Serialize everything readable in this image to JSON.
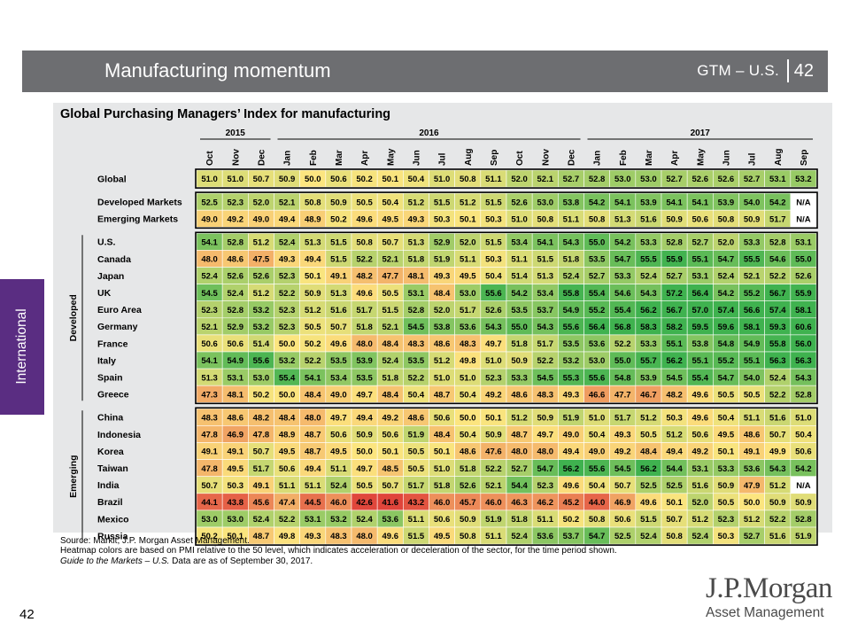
{
  "header": {
    "title": "Manufacturing momentum",
    "section": "GTM – U.S.",
    "page_number": "42",
    "banner_color": "#6d6e71",
    "chevron_color": "#a0522d"
  },
  "side_tab": {
    "label": "International",
    "color": "#5a2d82"
  },
  "chart_data": {
    "type": "heatmap",
    "title": "Global Purchasing Managers’ Index for manufacturing",
    "years": [
      {
        "label": "2015",
        "start": 0,
        "end": 2
      },
      {
        "label": "2016",
        "start": 3,
        "end": 14
      },
      {
        "label": "2017",
        "start": 15,
        "end": 23
      }
    ],
    "months": [
      "Oct",
      "Nov",
      "Dec",
      "Jan",
      "Feb",
      "Mar",
      "Apr",
      "May",
      "Jun",
      "Jul",
      "Aug",
      "Sep",
      "Oct",
      "Nov",
      "Dec",
      "Jan",
      "Feb",
      "Mar",
      "Apr",
      "May",
      "Jun",
      "Jul",
      "Aug",
      "Sep"
    ],
    "groups": [
      {
        "label": "",
        "rows": [
          {
            "name": "Global",
            "values": [
              "51.0",
              "51.0",
              "50.7",
              "50.9",
              "50.0",
              "50.6",
              "50.2",
              "50.1",
              "50.4",
              "51.0",
              "50.8",
              "51.1",
              "52.0",
              "52.1",
              "52.7",
              "52.8",
              "53.0",
              "53.0",
              "52.7",
              "52.6",
              "52.6",
              "52.7",
              "53.1",
              "53.2"
            ]
          }
        ]
      },
      {
        "label": "",
        "rows": [
          {
            "name": "Developed Markets",
            "values": [
              "52.5",
              "52.3",
              "52.0",
              "52.1",
              "50.8",
              "50.9",
              "50.5",
              "50.4",
              "51.2",
              "51.5",
              "51.2",
              "51.5",
              "52.6",
              "53.0",
              "53.8",
              "54.2",
              "54.1",
              "53.9",
              "54.1",
              "54.1",
              "53.9",
              "54.0",
              "54.2",
              "N/A"
            ]
          },
          {
            "name": "Emerging Markets",
            "values": [
              "49.0",
              "49.2",
              "49.0",
              "49.4",
              "48.9",
              "50.2",
              "49.6",
              "49.5",
              "49.3",
              "50.3",
              "50.1",
              "50.3",
              "51.0",
              "50.8",
              "51.1",
              "50.8",
              "51.3",
              "51.6",
              "50.9",
              "50.6",
              "50.8",
              "50.9",
              "51.7",
              "N/A"
            ]
          }
        ]
      },
      {
        "label": "Developed",
        "rows": [
          {
            "name": "U.S.",
            "values": [
              "54.1",
              "52.8",
              "51.2",
              "52.4",
              "51.3",
              "51.5",
              "50.8",
              "50.7",
              "51.3",
              "52.9",
              "52.0",
              "51.5",
              "53.4",
              "54.1",
              "54.3",
              "55.0",
              "54.2",
              "53.3",
              "52.8",
              "52.7",
              "52.0",
              "53.3",
              "52.8",
              "53.1"
            ]
          },
          {
            "name": "Canada",
            "values": [
              "48.0",
              "48.6",
              "47.5",
              "49.3",
              "49.4",
              "51.5",
              "52.2",
              "52.1",
              "51.8",
              "51.9",
              "51.1",
              "50.3",
              "51.1",
              "51.5",
              "51.8",
              "53.5",
              "54.7",
              "55.5",
              "55.9",
              "55.1",
              "54.7",
              "55.5",
              "54.6",
              "55.0"
            ]
          },
          {
            "name": "Japan",
            "values": [
              "52.4",
              "52.6",
              "52.6",
              "52.3",
              "50.1",
              "49.1",
              "48.2",
              "47.7",
              "48.1",
              "49.3",
              "49.5",
              "50.4",
              "51.4",
              "51.3",
              "52.4",
              "52.7",
              "53.3",
              "52.4",
              "52.7",
              "53.1",
              "52.4",
              "52.1",
              "52.2",
              "52.6"
            ]
          },
          {
            "name": "UK",
            "values": [
              "54.5",
              "52.4",
              "51.2",
              "52.2",
              "50.9",
              "51.3",
              "49.6",
              "50.5",
              "53.1",
              "48.4",
              "53.0",
              "55.6",
              "54.2",
              "53.4",
              "55.8",
              "55.4",
              "54.6",
              "54.3",
              "57.2",
              "56.4",
              "54.2",
              "55.2",
              "56.7",
              "55.9"
            ]
          },
          {
            "name": "Euro Area",
            "values": [
              "52.3",
              "52.8",
              "53.2",
              "52.3",
              "51.2",
              "51.6",
              "51.7",
              "51.5",
              "52.8",
              "52.0",
              "51.7",
              "52.6",
              "53.5",
              "53.7",
              "54.9",
              "55.2",
              "55.4",
              "56.2",
              "56.7",
              "57.0",
              "57.4",
              "56.6",
              "57.4",
              "58.1"
            ]
          },
          {
            "name": "Germany",
            "values": [
              "52.1",
              "52.9",
              "53.2",
              "52.3",
              "50.5",
              "50.7",
              "51.8",
              "52.1",
              "54.5",
              "53.8",
              "53.6",
              "54.3",
              "55.0",
              "54.3",
              "55.6",
              "56.4",
              "56.8",
              "58.3",
              "58.2",
              "59.5",
              "59.6",
              "58.1",
              "59.3",
              "60.6"
            ]
          },
          {
            "name": "France",
            "values": [
              "50.6",
              "50.6",
              "51.4",
              "50.0",
              "50.2",
              "49.6",
              "48.0",
              "48.4",
              "48.3",
              "48.6",
              "48.3",
              "49.7",
              "51.8",
              "51.7",
              "53.5",
              "53.6",
              "52.2",
              "53.3",
              "55.1",
              "53.8",
              "54.8",
              "54.9",
              "55.8",
              "56.0"
            ]
          },
          {
            "name": "Italy",
            "values": [
              "54.1",
              "54.9",
              "55.6",
              "53.2",
              "52.2",
              "53.5",
              "53.9",
              "52.4",
              "53.5",
              "51.2",
              "49.8",
              "51.0",
              "50.9",
              "52.2",
              "53.2",
              "53.0",
              "55.0",
              "55.7",
              "56.2",
              "55.1",
              "55.2",
              "55.1",
              "56.3",
              "56.3"
            ]
          },
          {
            "name": "Spain",
            "values": [
              "51.3",
              "53.1",
              "53.0",
              "55.4",
              "54.1",
              "53.4",
              "53.5",
              "51.8",
              "52.2",
              "51.0",
              "51.0",
              "52.3",
              "53.3",
              "54.5",
              "55.3",
              "55.6",
              "54.8",
              "53.9",
              "54.5",
              "55.4",
              "54.7",
              "54.0",
              "52.4",
              "54.3"
            ]
          },
          {
            "name": "Greece",
            "values": [
              "47.3",
              "48.1",
              "50.2",
              "50.0",
              "48.4",
              "49.0",
              "49.7",
              "48.4",
              "50.4",
              "48.7",
              "50.4",
              "49.2",
              "48.6",
              "48.3",
              "49.3",
              "46.6",
              "47.7",
              "46.7",
              "48.2",
              "49.6",
              "50.5",
              "50.5",
              "52.2",
              "52.8"
            ]
          }
        ]
      },
      {
        "label": "Emerging",
        "rows": [
          {
            "name": "China",
            "values": [
              "48.3",
              "48.6",
              "48.2",
              "48.4",
              "48.0",
              "49.7",
              "49.4",
              "49.2",
              "48.6",
              "50.6",
              "50.0",
              "50.1",
              "51.2",
              "50.9",
              "51.9",
              "51.0",
              "51.7",
              "51.2",
              "50.3",
              "49.6",
              "50.4",
              "51.1",
              "51.6",
              "51.0"
            ]
          },
          {
            "name": "Indonesia",
            "values": [
              "47.8",
              "46.9",
              "47.8",
              "48.9",
              "48.7",
              "50.6",
              "50.9",
              "50.6",
              "51.9",
              "48.4",
              "50.4",
              "50.9",
              "48.7",
              "49.7",
              "49.0",
              "50.4",
              "49.3",
              "50.5",
              "51.2",
              "50.6",
              "49.5",
              "48.6",
              "50.7",
              "50.4"
            ]
          },
          {
            "name": "Korea",
            "values": [
              "49.1",
              "49.1",
              "50.7",
              "49.5",
              "48.7",
              "49.5",
              "50.0",
              "50.1",
              "50.5",
              "50.1",
              "48.6",
              "47.6",
              "48.0",
              "48.0",
              "49.4",
              "49.0",
              "49.2",
              "48.4",
              "49.4",
              "49.2",
              "50.1",
              "49.1",
              "49.9",
              "50.6"
            ]
          },
          {
            "name": "Taiwan",
            "values": [
              "47.8",
              "49.5",
              "51.7",
              "50.6",
              "49.4",
              "51.1",
              "49.7",
              "48.5",
              "50.5",
              "51.0",
              "51.8",
              "52.2",
              "52.7",
              "54.7",
              "56.2",
              "55.6",
              "54.5",
              "56.2",
              "54.4",
              "53.1",
              "53.3",
              "53.6",
              "54.3",
              "54.2"
            ]
          },
          {
            "name": "India",
            "values": [
              "50.7",
              "50.3",
              "49.1",
              "51.1",
              "51.1",
              "52.4",
              "50.5",
              "50.7",
              "51.7",
              "51.8",
              "52.6",
              "52.1",
              "54.4",
              "52.3",
              "49.6",
              "50.4",
              "50.7",
              "52.5",
              "52.5",
              "51.6",
              "50.9",
              "47.9",
              "51.2",
              "N/A"
            ]
          },
          {
            "name": "Brazil",
            "values": [
              "44.1",
              "43.8",
              "45.6",
              "47.4",
              "44.5",
              "46.0",
              "42.6",
              "41.6",
              "43.2",
              "46.0",
              "45.7",
              "46.0",
              "46.3",
              "46.2",
              "45.2",
              "44.0",
              "46.9",
              "49.6",
              "50.1",
              "52.0",
              "50.5",
              "50.0",
              "50.9",
              "50.9"
            ]
          },
          {
            "name": "Mexico",
            "values": [
              "53.0",
              "53.0",
              "52.4",
              "52.2",
              "53.1",
              "53.2",
              "52.4",
              "53.6",
              "51.1",
              "50.6",
              "50.9",
              "51.9",
              "51.8",
              "51.1",
              "50.2",
              "50.8",
              "50.6",
              "51.5",
              "50.7",
              "51.2",
              "52.3",
              "51.2",
              "52.2",
              "52.8"
            ]
          },
          {
            "name": "Russia",
            "values": [
              "50.2",
              "50.1",
              "48.7",
              "49.8",
              "49.3",
              "48.3",
              "48.0",
              "49.6",
              "51.5",
              "49.5",
              "50.8",
              "51.1",
              "52.4",
              "53.6",
              "53.7",
              "54.7",
              "52.5",
              "52.4",
              "50.8",
              "52.4",
              "50.3",
              "52.7",
              "51.6",
              "51.9"
            ]
          }
        ]
      }
    ],
    "color_scale": {
      "low": "#e0453b",
      "mid": "#fce57f",
      "high": "#3fb24f",
      "na": "#ffffff"
    }
  },
  "notes": {
    "source": "Source: Markit, J.P. Morgan Asset Management.",
    "heatmap": "Heatmap colors are based on PMI relative to the 50 level, which indicates acceleration or deceleration of the sector, for the time period shown.",
    "guide_italic": "Guide to the Markets – U.S.",
    "as_of": " Data are as of September 30, 2017."
  },
  "footer": {
    "page_number": "42",
    "logo_main": "J.P.Morgan",
    "logo_sub": "Asset Management"
  }
}
